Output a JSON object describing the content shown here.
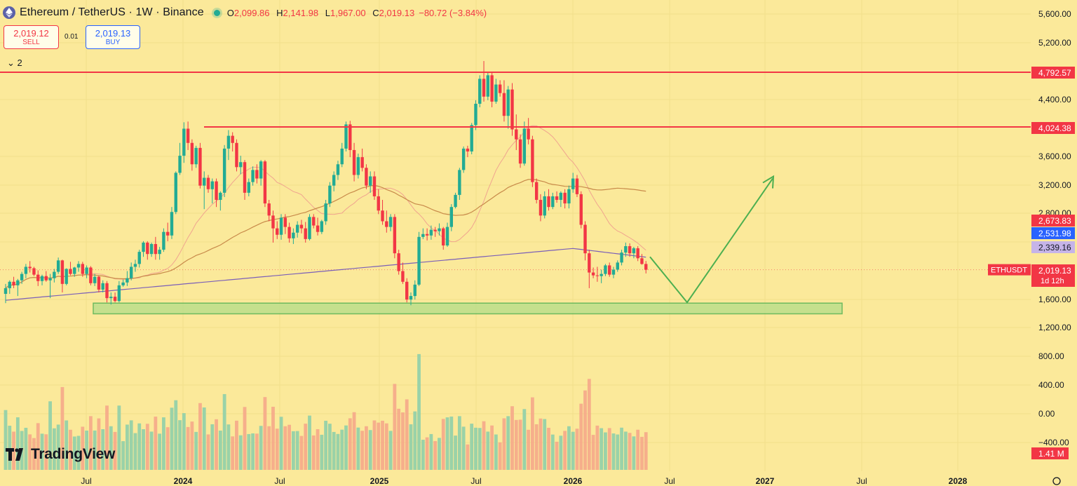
{
  "header": {
    "symbol_title": "Ethereum / TetherUS · 1W · Binance",
    "ohlc": {
      "o_label": "O",
      "o": "2,099.86",
      "h_label": "H",
      "h": "2,141.98",
      "l_label": "L",
      "l": "1,967.00",
      "c_label": "C",
      "c": "2,019.13",
      "change": "−80.72 (−3.84%)"
    },
    "logo_icon": "ethereum-icon",
    "status_color": "#22ab94"
  },
  "trade": {
    "sell_price": "2,019.12",
    "sell_label": "SELL",
    "spread": "0.01",
    "buy_price": "2,019.13",
    "buy_label": "BUY"
  },
  "legend_toggle": "⌄ 2",
  "branding": "TradingView",
  "chart_data": {
    "type": "candlestick",
    "symbol": "ETHUSDT",
    "interval": "1W",
    "y_axis": {
      "ticks": [
        "5,600.00",
        "5,200.00",
        "4,400.00",
        "4,000.00",
        "3,600.00",
        "3,200.00",
        "2,800.00",
        "1,600.00",
        "1,200.00"
      ],
      "range": [
        1000,
        5700
      ]
    },
    "volume_axis": {
      "ticks": [
        "800.00",
        "400.00",
        "0.00",
        "−400.00"
      ]
    },
    "x_axis": {
      "ticks": [
        "Jul",
        "2024",
        "Jul",
        "2025",
        "Jul",
        "2026",
        "Jul",
        "2027",
        "Jul",
        "2028"
      ]
    },
    "price_labels": [
      {
        "value": 4792.57,
        "text": "4,792.57",
        "bg": "#f23645",
        "fg": "#ffffff"
      },
      {
        "value": 4024.38,
        "text": "4,024.38",
        "bg": "#f23645",
        "fg": "#ffffff"
      },
      {
        "value": 2673.83,
        "text": "2,673.83",
        "bg": "#f23645",
        "fg": "#ffffff"
      },
      {
        "value": 2531.98,
        "text": "2,531.98",
        "bg": "#2962ff",
        "fg": "#ffffff"
      },
      {
        "value": 2339.16,
        "text": "2,339.16",
        "bg": "#c6b4e8",
        "fg": "#131722"
      },
      {
        "value": 2019.13,
        "text": "2,019.13",
        "sub": "1d 12h",
        "bg": "#f23645",
        "fg": "#ffffff"
      }
    ],
    "symbol_tag": "ETHUSDT",
    "volume_label": "1.41 M",
    "resistance_lines": [
      4792.57,
      4024.38
    ],
    "support_zone": {
      "low": 1400,
      "high": 1550,
      "from": "2023-07",
      "to": "2027-06"
    },
    "projection_arrow": {
      "from": 2200,
      "low": 1560,
      "to": 3300,
      "color": "#4caf50"
    },
    "colors": {
      "up": "#22ab94",
      "down": "#f23645",
      "ma200": "#7b5fb8",
      "ma50": "#c88a4a",
      "ma20": "#f0a48f"
    },
    "candles": [
      [
        1680,
        1820,
        1550,
        1760
      ],
      [
        1760,
        1870,
        1680,
        1850
      ],
      [
        1850,
        1920,
        1760,
        1800
      ],
      [
        1800,
        1890,
        1650,
        1870
      ],
      [
        1870,
        1990,
        1820,
        1960
      ],
      [
        1960,
        2100,
        1900,
        2060
      ],
      [
        2060,
        2140,
        1980,
        2040
      ],
      [
        2040,
        2060,
        1930,
        1950
      ],
      [
        1950,
        2010,
        1790,
        1860
      ],
      [
        1860,
        1950,
        1800,
        1930
      ],
      [
        1930,
        2000,
        1850,
        1870
      ],
      [
        1870,
        1960,
        1620,
        1900
      ],
      [
        1900,
        2030,
        1840,
        1990
      ],
      [
        1990,
        2190,
        1960,
        2150
      ],
      [
        2150,
        2160,
        1700,
        1820
      ],
      [
        1820,
        2040,
        1800,
        2030
      ],
      [
        2030,
        2130,
        1940,
        1960
      ],
      [
        1960,
        2060,
        1920,
        2050
      ],
      [
        2050,
        2140,
        1990,
        2100
      ],
      [
        2100,
        2130,
        1920,
        1960
      ],
      [
        1960,
        2080,
        1900,
        2050
      ],
      [
        2050,
        2070,
        1800,
        1830
      ],
      [
        1830,
        1960,
        1790,
        1920
      ],
      [
        1920,
        1940,
        1700,
        1740
      ],
      [
        1740,
        1870,
        1700,
        1830
      ],
      [
        1830,
        1860,
        1560,
        1620
      ],
      [
        1620,
        1700,
        1530,
        1640
      ],
      [
        1640,
        1700,
        1560,
        1580
      ],
      [
        1580,
        1860,
        1560,
        1800
      ],
      [
        1800,
        1880,
        1780,
        1840
      ],
      [
        1840,
        2000,
        1790,
        1900
      ],
      [
        1900,
        2120,
        1870,
        2060
      ],
      [
        2060,
        2160,
        1990,
        2100
      ],
      [
        2100,
        2300,
        2050,
        2270
      ],
      [
        2270,
        2420,
        2200,
        2400
      ],
      [
        2400,
        2420,
        2160,
        2240
      ],
      [
        2240,
        2400,
        2200,
        2380
      ],
      [
        2380,
        2480,
        2160,
        2240
      ],
      [
        2240,
        2340,
        2160,
        2300
      ],
      [
        2300,
        2600,
        2270,
        2550
      ],
      [
        2550,
        2680,
        2420,
        2500
      ],
      [
        2500,
        2900,
        2450,
        2830
      ],
      [
        2830,
        3400,
        2800,
        3380
      ],
      [
        3380,
        3800,
        3350,
        3620
      ],
      [
        3620,
        4090,
        3520,
        4000
      ],
      [
        4000,
        4100,
        3700,
        3800
      ],
      [
        3800,
        3850,
        3410,
        3500
      ],
      [
        3500,
        3760,
        3450,
        3730
      ],
      [
        3730,
        3800,
        3160,
        3200
      ],
      [
        3200,
        3400,
        2870,
        3310
      ],
      [
        3310,
        3350,
        3100,
        3150
      ],
      [
        3150,
        3300,
        2950,
        3260
      ],
      [
        3260,
        3300,
        2900,
        3000
      ],
      [
        3000,
        3120,
        2850,
        3100
      ],
      [
        3100,
        3770,
        3040,
        3720
      ],
      [
        3720,
        3980,
        3560,
        3900
      ],
      [
        3900,
        3950,
        3680,
        3800
      ],
      [
        3800,
        3850,
        3400,
        3460
      ],
      [
        3460,
        3620,
        3360,
        3530
      ],
      [
        3530,
        3560,
        3000,
        3100
      ],
      [
        3100,
        3300,
        3050,
        3250
      ],
      [
        3250,
        3470,
        3200,
        3420
      ],
      [
        3420,
        3500,
        3230,
        3300
      ],
      [
        3300,
        3560,
        3200,
        3540
      ],
      [
        3540,
        3560,
        2900,
        2950
      ],
      [
        2950,
        3000,
        2700,
        2780
      ],
      [
        2780,
        2850,
        2400,
        2600
      ],
      [
        2600,
        2700,
        2450,
        2510
      ],
      [
        2510,
        2800,
        2440,
        2750
      ],
      [
        2750,
        2800,
        2520,
        2620
      ],
      [
        2620,
        2680,
        2400,
        2460
      ],
      [
        2460,
        2600,
        2380,
        2540
      ],
      [
        2540,
        2700,
        2470,
        2650
      ],
      [
        2650,
        2720,
        2530,
        2600
      ],
      [
        2600,
        2690,
        2400,
        2450
      ],
      [
        2450,
        2800,
        2430,
        2760
      ],
      [
        2760,
        2800,
        2600,
        2640
      ],
      [
        2640,
        2750,
        2500,
        2550
      ],
      [
        2550,
        2720,
        2520,
        2700
      ],
      [
        2700,
        3000,
        2650,
        2950
      ],
      [
        2950,
        3250,
        2900,
        3200
      ],
      [
        3200,
        3400,
        3120,
        3350
      ],
      [
        3350,
        3550,
        3280,
        3500
      ],
      [
        3500,
        3800,
        3460,
        3720
      ],
      [
        3720,
        4100,
        3680,
        4060
      ],
      [
        4060,
        4110,
        3600,
        3700
      ],
      [
        3700,
        3800,
        3260,
        3350
      ],
      [
        3350,
        3650,
        3300,
        3600
      ],
      [
        3600,
        3720,
        3400,
        3450
      ],
      [
        3450,
        3500,
        3150,
        3200
      ],
      [
        3200,
        3400,
        3100,
        3330
      ],
      [
        3330,
        3400,
        3000,
        3050
      ],
      [
        3050,
        3150,
        2800,
        2850
      ],
      [
        2850,
        3000,
        2650,
        2700
      ],
      [
        2700,
        2850,
        2540,
        2620
      ],
      [
        2620,
        2800,
        2560,
        2760
      ],
      [
        2760,
        2800,
        2180,
        2250
      ],
      [
        2250,
        2300,
        1950,
        2000
      ],
      [
        2000,
        2120,
        1820,
        1850
      ],
      [
        1850,
        1900,
        1560,
        1600
      ],
      [
        1600,
        1700,
        1520,
        1650
      ],
      [
        1650,
        1870,
        1600,
        1810
      ],
      [
        1810,
        2550,
        1790,
        2480
      ],
      [
        2480,
        2600,
        2450,
        2520
      ],
      [
        2520,
        2600,
        2430,
        2500
      ],
      [
        2500,
        2640,
        2440,
        2580
      ],
      [
        2580,
        2620,
        2480,
        2560
      ],
      [
        2560,
        2670,
        2500,
        2600
      ],
      [
        2600,
        2620,
        2300,
        2360
      ],
      [
        2360,
        2680,
        2340,
        2620
      ],
      [
        2620,
        2940,
        2560,
        2900
      ],
      [
        2900,
        3100,
        2880,
        3070
      ],
      [
        3070,
        3450,
        3000,
        3420
      ],
      [
        3420,
        3750,
        3380,
        3720
      ],
      [
        3720,
        3760,
        3600,
        3680
      ],
      [
        3680,
        4080,
        3640,
        4050
      ],
      [
        4050,
        4400,
        3980,
        4350
      ],
      [
        4350,
        4750,
        4300,
        4700
      ],
      [
        4700,
        4950,
        4380,
        4450
      ],
      [
        4450,
        4800,
        4400,
        4750
      ],
      [
        4750,
        4790,
        4300,
        4380
      ],
      [
        4380,
        4700,
        4350,
        4620
      ],
      [
        4620,
        4680,
        4450,
        4500
      ],
      [
        4500,
        4680,
        4100,
        4180
      ],
      [
        4180,
        4600,
        4000,
        4550
      ],
      [
        4550,
        4640,
        3900,
        3990
      ],
      [
        3990,
        4200,
        3700,
        3850
      ],
      [
        3850,
        3920,
        3450,
        3510
      ],
      [
        3510,
        4100,
        3480,
        4000
      ],
      [
        4000,
        4150,
        3780,
        3850
      ],
      [
        3850,
        3900,
        3180,
        3250
      ],
      [
        3250,
        3300,
        2950,
        3000
      ],
      [
        3000,
        3080,
        2700,
        2780
      ],
      [
        2780,
        3120,
        2740,
        3050
      ],
      [
        3050,
        3150,
        2850,
        2900
      ],
      [
        2900,
        3100,
        2870,
        3050
      ],
      [
        3050,
        3120,
        2960,
        3000
      ],
      [
        3000,
        3120,
        2900,
        3100
      ],
      [
        3100,
        3150,
        2880,
        2950
      ],
      [
        2950,
        3200,
        2880,
        3150
      ],
      [
        3150,
        3380,
        3100,
        3300
      ],
      [
        3300,
        3350,
        3040,
        3080
      ],
      [
        3080,
        3120,
        2600,
        2650
      ],
      [
        2650,
        2700,
        2150,
        2250
      ],
      [
        2250,
        2300,
        1760,
        1980
      ],
      [
        1980,
        2050,
        1900,
        1940
      ],
      [
        1940,
        2060,
        1850,
        1930
      ],
      [
        1930,
        2020,
        1830,
        1960
      ],
      [
        1960,
        2100,
        1930,
        2080
      ],
      [
        2080,
        2120,
        1920,
        1950
      ],
      [
        1950,
        2060,
        1900,
        2020
      ],
      [
        2020,
        2150,
        1990,
        2120
      ],
      [
        2120,
        2300,
        2080,
        2260
      ],
      [
        2260,
        2400,
        2200,
        2350
      ],
      [
        2350,
        2390,
        2200,
        2250
      ],
      [
        2250,
        2340,
        2180,
        2320
      ],
      [
        2320,
        2350,
        2140,
        2180
      ],
      [
        2180,
        2240,
        2090,
        2100
      ],
      [
        2100,
        2142,
        1967,
        2019
      ]
    ]
  }
}
